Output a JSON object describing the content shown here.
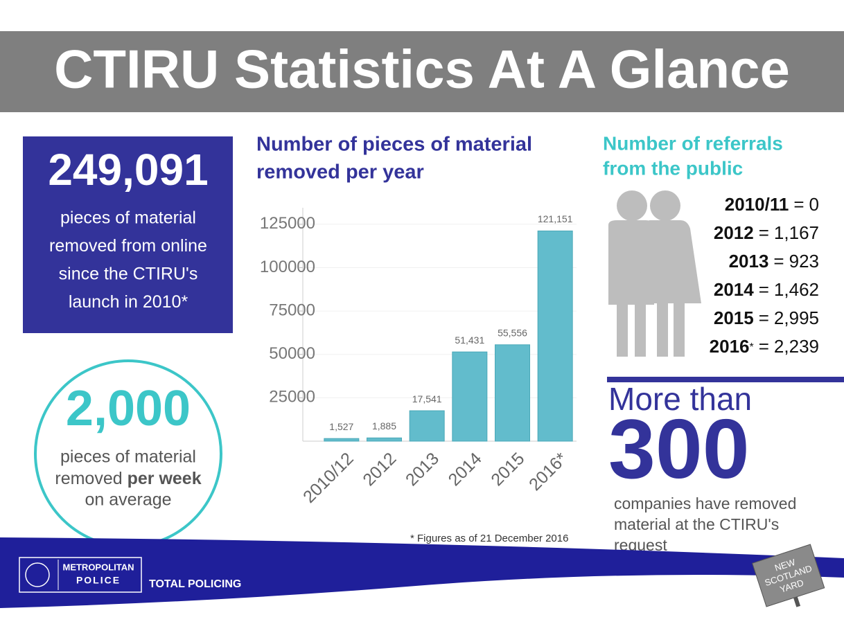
{
  "header": {
    "title": "CTIRU Statistics At A Glance"
  },
  "total_box": {
    "number": "249,091",
    "lines": [
      "pieces of material",
      "removed from online",
      "since the CTIRU's",
      "launch in 2010*"
    ]
  },
  "weekly_circle": {
    "number": "2,000",
    "line1": "pieces of material",
    "line2_pre": "removed ",
    "line2_bold": "per week",
    "line3": "on average"
  },
  "chart_data": {
    "type": "bar",
    "title_lines": [
      "Number of pieces of material",
      "removed per year"
    ],
    "categories": [
      "2010/12",
      "2012",
      "2013",
      "2014",
      "2015",
      "2016*"
    ],
    "values": [
      1527,
      1885,
      17541,
      51431,
      55556,
      121151
    ],
    "value_labels": [
      "1,527",
      "1,885",
      "17,541",
      "51,431",
      "55,556",
      "121,151"
    ],
    "color": "#62bccc",
    "ylim": [
      0,
      134500
    ],
    "yticks": [
      25000,
      50000,
      75000,
      100000,
      125000
    ],
    "grid": true,
    "footnote": "* Figures as of 21 December 2016"
  },
  "referrals": {
    "title_lines": [
      "Number of referrals",
      "from the public"
    ],
    "separator": "=",
    "rows": [
      {
        "year": "2010/11",
        "value": "0"
      },
      {
        "year": "2012",
        "value": "1,167"
      },
      {
        "year": "2013",
        "value": "923"
      },
      {
        "year": "2014",
        "value": "1,462"
      },
      {
        "year": "2015",
        "value": "2,995"
      },
      {
        "year": "2016",
        "note": "*",
        "value": "2,239"
      }
    ]
  },
  "companies": {
    "prefix": "More than",
    "number": "300",
    "lines": [
      "companies have removed",
      "material at the CTIRU's",
      "request"
    ]
  },
  "footer": {
    "logo_line1": "METROPOLITAN",
    "logo_line2": "POLICE",
    "slogan": "TOTAL POLICING",
    "sign_lines": [
      "NEW",
      "SCOTLAND",
      "YARD"
    ]
  }
}
